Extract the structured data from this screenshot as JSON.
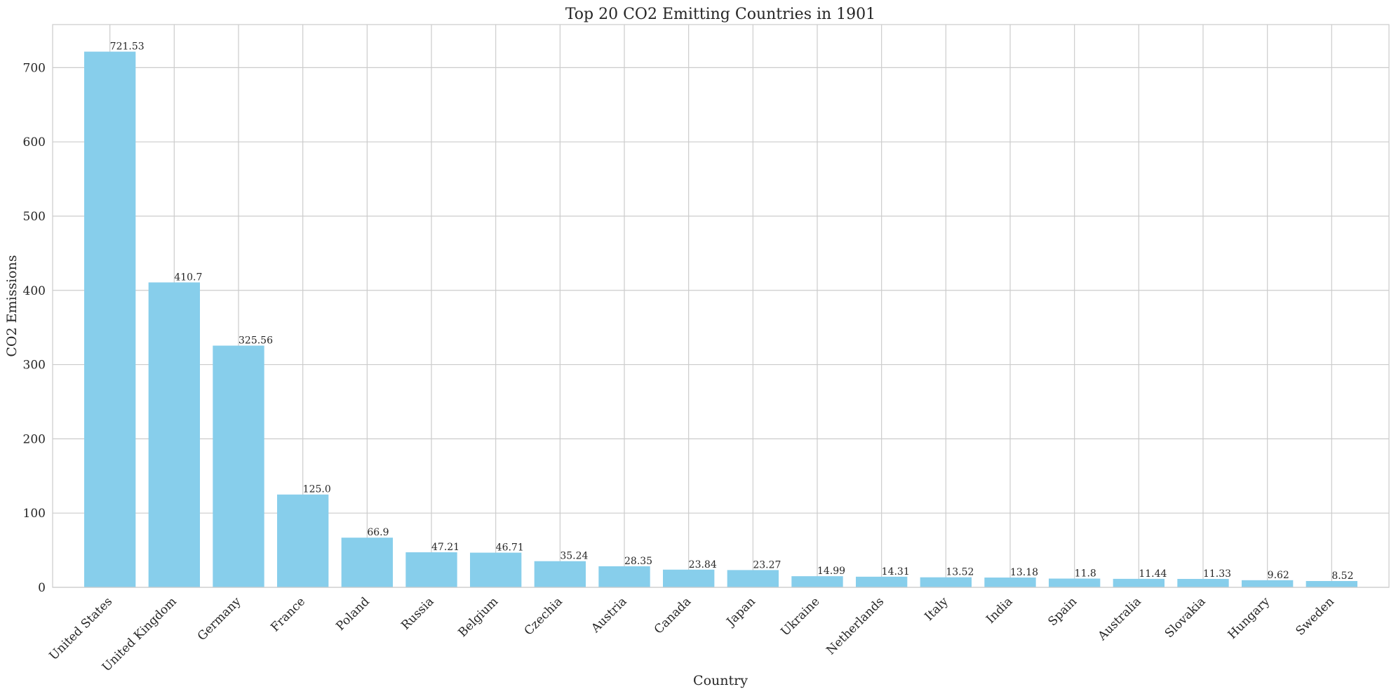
{
  "chart_data": {
    "type": "bar",
    "title": "Top 20 CO2 Emitting Countries in 1901",
    "xlabel": "Country",
    "ylabel": "CO2 Emissions",
    "ylim": [
      0,
      758
    ],
    "yticks": [
      0,
      100,
      200,
      300,
      400,
      500,
      600,
      700
    ],
    "grid": true,
    "bar_color": "#87CEEB",
    "grid_color": "#cccccc",
    "categories": [
      "United States",
      "United Kingdom",
      "Germany",
      "France",
      "Poland",
      "Russia",
      "Belgium",
      "Czechia",
      "Austria",
      "Canada",
      "Japan",
      "Ukraine",
      "Netherlands",
      "Italy",
      "India",
      "Spain",
      "Australia",
      "Slovakia",
      "Hungary",
      "Sweden"
    ],
    "values": [
      721.53,
      410.7,
      325.56,
      125.0,
      66.9,
      47.21,
      46.71,
      35.24,
      28.35,
      23.84,
      23.27,
      14.99,
      14.31,
      13.52,
      13.18,
      11.8,
      11.44,
      11.33,
      9.62,
      8.52
    ],
    "value_labels": [
      "721.53",
      "410.7",
      "325.56",
      "125.0",
      "66.9",
      "47.21",
      "46.71",
      "35.24",
      "28.35",
      "23.84",
      "23.27",
      "14.99",
      "14.31",
      "13.52",
      "13.18",
      "11.8",
      "11.44",
      "11.33",
      "9.62",
      "8.52"
    ]
  }
}
